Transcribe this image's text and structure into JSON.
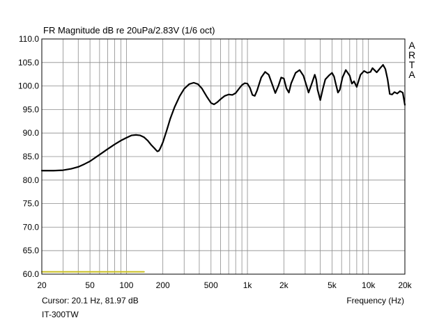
{
  "chart_data": {
    "type": "line",
    "title": "FR Magnitude dB re 20uPa/2.83V (1/6 oct)",
    "xlabel": "Frequency (Hz)",
    "ylabel": "",
    "xscale": "log",
    "xlim": [
      20,
      20000
    ],
    "ylim": [
      60,
      110
    ],
    "grid": true,
    "x_ticks": [
      {
        "value": 20,
        "label": "20"
      },
      {
        "value": 50,
        "label": "50"
      },
      {
        "value": 100,
        "label": "100"
      },
      {
        "value": 200,
        "label": "200"
      },
      {
        "value": 500,
        "label": "500"
      },
      {
        "value": 1000,
        "label": "1k"
      },
      {
        "value": 2000,
        "label": "2k"
      },
      {
        "value": 5000,
        "label": "5k"
      },
      {
        "value": 10000,
        "label": "10k"
      },
      {
        "value": 20000,
        "label": "20k"
      }
    ],
    "y_ticks": [
      {
        "value": 110,
        "label": "110.0"
      },
      {
        "value": 105,
        "label": "105.0"
      },
      {
        "value": 100,
        "label": "100.0"
      },
      {
        "value": 95,
        "label": "95.0"
      },
      {
        "value": 90,
        "label": "90.0"
      },
      {
        "value": 85,
        "label": "85.0"
      },
      {
        "value": 80,
        "label": "80.0"
      },
      {
        "value": 75,
        "label": "75.0"
      },
      {
        "value": 70,
        "label": "70.0"
      },
      {
        "value": 65,
        "label": "65.0"
      },
      {
        "value": 60,
        "label": "60.0"
      }
    ],
    "series": [
      {
        "color": "#000000",
        "points": [
          [
            20,
            82.0
          ],
          [
            25,
            82.0
          ],
          [
            30,
            82.1
          ],
          [
            35,
            82.4
          ],
          [
            40,
            82.8
          ],
          [
            45,
            83.4
          ],
          [
            50,
            84.0
          ],
          [
            60,
            85.4
          ],
          [
            70,
            86.6
          ],
          [
            80,
            87.6
          ],
          [
            90,
            88.4
          ],
          [
            100,
            89.0
          ],
          [
            110,
            89.5
          ],
          [
            120,
            89.6
          ],
          [
            130,
            89.5
          ],
          [
            140,
            89.1
          ],
          [
            150,
            88.4
          ],
          [
            160,
            87.5
          ],
          [
            170,
            86.8
          ],
          [
            180,
            86.1
          ],
          [
            185,
            86.2
          ],
          [
            190,
            86.7
          ],
          [
            200,
            88.0
          ],
          [
            215,
            90.5
          ],
          [
            230,
            93.0
          ],
          [
            250,
            95.5
          ],
          [
            275,
            97.8
          ],
          [
            300,
            99.4
          ],
          [
            330,
            100.4
          ],
          [
            360,
            100.7
          ],
          [
            390,
            100.4
          ],
          [
            420,
            99.5
          ],
          [
            460,
            97.8
          ],
          [
            500,
            96.4
          ],
          [
            530,
            96.1
          ],
          [
            560,
            96.5
          ],
          [
            600,
            97.2
          ],
          [
            650,
            97.9
          ],
          [
            700,
            98.2
          ],
          [
            750,
            98.1
          ],
          [
            800,
            98.5
          ],
          [
            850,
            99.4
          ],
          [
            900,
            100.2
          ],
          [
            950,
            100.6
          ],
          [
            1000,
            100.5
          ],
          [
            1050,
            99.6
          ],
          [
            1100,
            98.1
          ],
          [
            1150,
            97.9
          ],
          [
            1200,
            99.0
          ],
          [
            1300,
            101.8
          ],
          [
            1400,
            103.0
          ],
          [
            1500,
            102.4
          ],
          [
            1600,
            100.4
          ],
          [
            1700,
            98.5
          ],
          [
            1800,
            100.0
          ],
          [
            1900,
            101.8
          ],
          [
            2000,
            101.6
          ],
          [
            2100,
            99.5
          ],
          [
            2200,
            98.6
          ],
          [
            2300,
            100.6
          ],
          [
            2500,
            102.8
          ],
          [
            2700,
            103.4
          ],
          [
            2900,
            102.2
          ],
          [
            3100,
            99.8
          ],
          [
            3200,
            98.6
          ],
          [
            3400,
            100.5
          ],
          [
            3600,
            102.4
          ],
          [
            3700,
            101.4
          ],
          [
            3800,
            99.2
          ],
          [
            4000,
            97.0
          ],
          [
            4200,
            99.4
          ],
          [
            4400,
            101.4
          ],
          [
            4700,
            102.2
          ],
          [
            5000,
            102.8
          ],
          [
            5200,
            102.0
          ],
          [
            5400,
            100.2
          ],
          [
            5600,
            98.6
          ],
          [
            5800,
            99.2
          ],
          [
            6100,
            101.8
          ],
          [
            6500,
            103.4
          ],
          [
            7000,
            102.2
          ],
          [
            7300,
            100.5
          ],
          [
            7600,
            101.0
          ],
          [
            8000,
            99.8
          ],
          [
            8600,
            102.4
          ],
          [
            9200,
            103.2
          ],
          [
            9800,
            102.8
          ],
          [
            10400,
            103.0
          ],
          [
            10800,
            103.8
          ],
          [
            11300,
            103.3
          ],
          [
            11700,
            102.9
          ],
          [
            12500,
            103.8
          ],
          [
            13200,
            104.5
          ],
          [
            13800,
            103.6
          ],
          [
            14400,
            101.4
          ],
          [
            15000,
            98.3
          ],
          [
            15700,
            98.2
          ],
          [
            16400,
            98.7
          ],
          [
            17300,
            98.4
          ],
          [
            18200,
            98.9
          ],
          [
            19200,
            98.6
          ],
          [
            20000,
            96.0
          ]
        ]
      },
      {
        "color": "#c8bd1e",
        "points": [
          [
            20,
            60.5
          ],
          [
            140,
            60.5
          ]
        ]
      }
    ]
  },
  "annotations": {
    "brand_letters": [
      "A",
      "R",
      "T",
      "A"
    ],
    "cursor_text": "Cursor: 20.1 Hz, 81.97 dB",
    "device_name": "IT-300TW"
  }
}
